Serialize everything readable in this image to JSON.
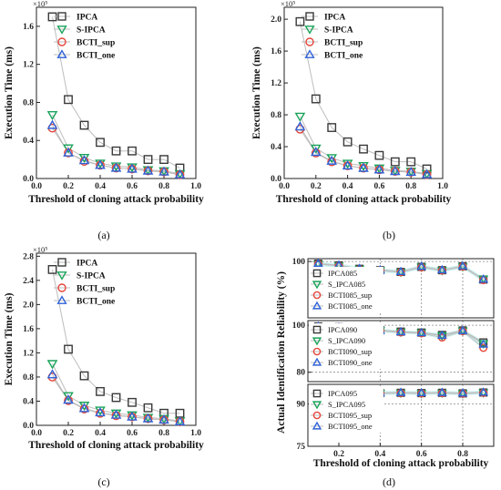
{
  "chart_data": [
    {
      "type": "scatter",
      "caption": "(a)",
      "xlabel": "Threshold of cloning attack probability",
      "ylabel": "Execution Time (ms)",
      "y_multiplier": "×10⁵",
      "xlim": [
        0,
        1.0
      ],
      "ylim": [
        0,
        1.8
      ],
      "x_ticks": [
        "0.0",
        "0.2",
        "0.4",
        "0.6",
        "0.8",
        "1.0"
      ],
      "y_ticks": [
        "0.0",
        "0.4",
        "0.8",
        "1.2",
        "1.6"
      ],
      "legend": "top-right",
      "grid": false,
      "x": [
        0.1,
        0.2,
        0.3,
        0.4,
        0.5,
        0.6,
        0.7,
        0.8,
        0.9
      ],
      "series": [
        {
          "name": "IPCA",
          "marker": "square",
          "values": [
            1.7,
            0.83,
            0.56,
            0.38,
            0.29,
            0.29,
            0.2,
            0.2,
            0.11
          ]
        },
        {
          "name": "S-IPCA",
          "marker": "triangle-down",
          "values": [
            0.67,
            0.32,
            0.22,
            0.16,
            0.13,
            0.12,
            0.09,
            0.08,
            0.05
          ]
        },
        {
          "name": "BCTI_sup",
          "marker": "circle",
          "values": [
            0.53,
            0.27,
            0.18,
            0.14,
            0.11,
            0.1,
            0.08,
            0.07,
            0.04
          ]
        },
        {
          "name": "BCTI_one",
          "marker": "triangle-up",
          "values": [
            0.56,
            0.27,
            0.19,
            0.14,
            0.11,
            0.1,
            0.08,
            0.07,
            0.04
          ]
        }
      ]
    },
    {
      "type": "scatter",
      "caption": "(b)",
      "xlabel": "Threshold of cloning attack probability",
      "ylabel": "Execution Time (ms)",
      "y_multiplier": "×10⁵",
      "xlim": [
        0,
        1.0
      ],
      "ylim": [
        0,
        2.15
      ],
      "x_ticks": [
        "0.0",
        "0.2",
        "0.4",
        "0.6",
        "0.8",
        "1.0"
      ],
      "y_ticks": [
        "0.0",
        "0.4",
        "0.8",
        "1.2",
        "1.6",
        "2.0"
      ],
      "legend": "top-right",
      "grid": false,
      "x": [
        0.1,
        0.2,
        0.3,
        0.4,
        0.5,
        0.6,
        0.7,
        0.8,
        0.9
      ],
      "series": [
        {
          "name": "IPCA",
          "marker": "square",
          "values": [
            1.97,
            1.0,
            0.64,
            0.46,
            0.37,
            0.29,
            0.21,
            0.21,
            0.12
          ]
        },
        {
          "name": "S-IPCA",
          "marker": "triangle-down",
          "values": [
            0.78,
            0.38,
            0.26,
            0.19,
            0.16,
            0.13,
            0.1,
            0.09,
            0.06
          ]
        },
        {
          "name": "BCTI_sup",
          "marker": "circle",
          "values": [
            0.62,
            0.32,
            0.21,
            0.16,
            0.13,
            0.11,
            0.09,
            0.08,
            0.05
          ]
        },
        {
          "name": "BCTI_one",
          "marker": "triangle-up",
          "values": [
            0.65,
            0.33,
            0.22,
            0.16,
            0.13,
            0.11,
            0.09,
            0.08,
            0.05
          ]
        }
      ]
    },
    {
      "type": "scatter",
      "caption": "(c)",
      "xlabel": "Threshold of cloning attack probability",
      "ylabel": "Execution Time (ms)",
      "y_multiplier": "×10⁵",
      "xlim": [
        0,
        1.0
      ],
      "ylim": [
        0,
        2.85
      ],
      "x_ticks": [
        "0.0",
        "0.2",
        "0.4",
        "0.6",
        "0.8",
        "1.0"
      ],
      "y_ticks": [
        "0.0",
        "0.4",
        "0.8",
        "1.2",
        "1.6",
        "2.0",
        "2.4",
        "2.8"
      ],
      "legend": "top-right",
      "grid": false,
      "x": [
        0.1,
        0.2,
        0.3,
        0.4,
        0.5,
        0.6,
        0.7,
        0.8,
        0.9
      ],
      "series": [
        {
          "name": "IPCA",
          "marker": "square",
          "values": [
            2.58,
            1.26,
            0.82,
            0.56,
            0.46,
            0.38,
            0.29,
            0.2,
            0.2
          ]
        },
        {
          "name": "S-IPCA",
          "marker": "triangle-down",
          "values": [
            1.02,
            0.49,
            0.33,
            0.25,
            0.2,
            0.17,
            0.13,
            0.11,
            0.07
          ]
        },
        {
          "name": "BCTI_sup",
          "marker": "circle",
          "values": [
            0.8,
            0.41,
            0.27,
            0.2,
            0.16,
            0.14,
            0.11,
            0.09,
            0.06
          ]
        },
        {
          "name": "BCTI_one",
          "marker": "triangle-up",
          "values": [
            0.84,
            0.42,
            0.28,
            0.21,
            0.17,
            0.14,
            0.11,
            0.09,
            0.06
          ]
        }
      ]
    },
    {
      "type": "scatter",
      "caption": "(d)",
      "xlabel": "Threshold of cloning attack probability",
      "ylabel": "Actual Identification Reliability (%)",
      "xlim": [
        0.05,
        0.95
      ],
      "x_ticks": [
        "0.2",
        "0.4",
        "0.6",
        "0.8"
      ],
      "legend": "middle-left",
      "grid": true,
      "x": [
        0.1,
        0.2,
        0.3,
        0.4,
        0.5,
        0.6,
        0.7,
        0.8,
        0.9
      ],
      "panels": [
        {
          "ylim": [
            80,
            101
          ],
          "y_ticks": [
            "100"
          ],
          "series": [
            {
              "name": "IPCA085",
              "marker": "square",
              "values": [
                99.2,
                98.6,
                97.4,
                96.9,
                96.3,
                98.1,
                96.9,
                98.3,
                93.6
              ]
            },
            {
              "name": "S_IPCA085",
              "marker": "triangle-down",
              "values": [
                99.0,
                98.5,
                97.3,
                96.8,
                96.2,
                98.0,
                96.8,
                98.1,
                93.8
              ]
            },
            {
              "name": "BCTI085_sup",
              "marker": "circle",
              "values": [
                99.1,
                98.4,
                97.2,
                96.8,
                96.2,
                97.9,
                96.8,
                98.2,
                93.4
              ]
            },
            {
              "name": "BCTI085_one",
              "marker": "triangle-up",
              "values": [
                99.3,
                98.7,
                97.5,
                97.0,
                96.4,
                98.2,
                97.0,
                98.4,
                93.7
              ]
            }
          ]
        },
        {
          "ylim": [
            76,
            102
          ],
          "y_ticks": [
            "100",
            "80"
          ],
          "series": [
            {
              "name": "IPCA090",
              "marker": "square",
              "values": [
                99.5,
                99.2,
                98.2,
                97.9,
                97.3,
                96.9,
                95.9,
                97.8,
                92.7
              ]
            },
            {
              "name": "S_IPCA090",
              "marker": "triangle-down",
              "values": [
                99.4,
                99.0,
                98.1,
                97.8,
                97.1,
                96.8,
                95.6,
                97.6,
                92.2
              ]
            },
            {
              "name": "BCTI090_sup",
              "marker": "circle",
              "values": [
                99.3,
                98.9,
                98.0,
                97.6,
                97.0,
                96.6,
                94.8,
                97.5,
                90.4
              ]
            },
            {
              "name": "BCTI090_one",
              "marker": "triangle-up",
              "values": [
                99.5,
                99.1,
                98.2,
                97.8,
                97.2,
                96.8,
                95.7,
                97.7,
                91.9
              ]
            }
          ]
        },
        {
          "ylim": [
            75,
            97
          ],
          "y_ticks": [
            "90",
            "75"
          ],
          "series": [
            {
              "name": "IPCA095",
              "marker": "square",
              "values": [
                94.1,
                94.2,
                94.0,
                93.9,
                94.0,
                93.9,
                94.0,
                93.8,
                94.1
              ]
            },
            {
              "name": "S_IPCA095",
              "marker": "triangle-down",
              "values": [
                94.0,
                94.1,
                93.9,
                93.8,
                93.9,
                93.8,
                93.9,
                93.7,
                94.0
              ]
            },
            {
              "name": "BCTI095_sup",
              "marker": "circle",
              "values": [
                94.0,
                94.1,
                93.9,
                93.8,
                93.9,
                93.8,
                93.9,
                93.7,
                94.0
              ]
            },
            {
              "name": "BCTI095_one",
              "marker": "triangle-up",
              "values": [
                94.2,
                94.3,
                94.1,
                94.0,
                94.1,
                94.0,
                94.1,
                93.9,
                94.2
              ]
            }
          ]
        }
      ]
    }
  ],
  "colors": {
    "square": "#3a3a3a",
    "triangle-down": "#1aa35a",
    "circle": "#e5453a",
    "triangle-up": "#2f63d8",
    "connector": "#bdbdbd",
    "band": "#a8e6e6"
  }
}
